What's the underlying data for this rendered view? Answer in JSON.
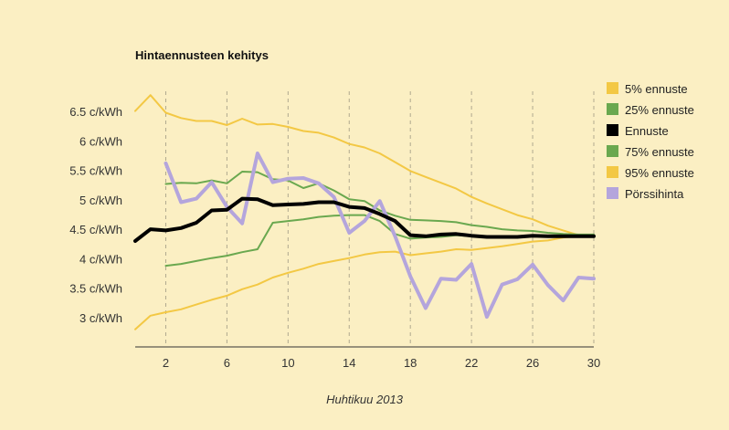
{
  "chart_data": {
    "type": "line",
    "title": "Hintaennusteen kehitys",
    "xlabel": "Huhtikuu 2013",
    "ylabel": "",
    "xlim": [
      0,
      30
    ],
    "ylim": [
      2.5,
      7.0
    ],
    "unit_suffix": " c/kWh",
    "grid": "vertical dashed",
    "legend_position": "right",
    "x_ticks": [
      "2",
      "6",
      "10",
      "14",
      "18",
      "22",
      "26",
      "30"
    ],
    "y_ticks": [
      "3",
      "3.5",
      "4",
      "4.5",
      "5",
      "5.5",
      "6",
      "6.5"
    ],
    "series": [
      {
        "name": "5% ennuste",
        "color": "#f3c844",
        "x": [
          0,
          1,
          2,
          3,
          4,
          5,
          6,
          7,
          8,
          9,
          10,
          11,
          12,
          13,
          14,
          15,
          16,
          17,
          18,
          19,
          20,
          21,
          22,
          23,
          24,
          25,
          26,
          27,
          28,
          29,
          30
        ],
        "values": [
          2.8,
          3.03,
          3.09,
          3.14,
          3.22,
          3.3,
          3.37,
          3.48,
          3.56,
          3.68,
          3.76,
          3.83,
          3.91,
          3.96,
          4.01,
          4.07,
          4.11,
          4.12,
          4.06,
          4.09,
          4.12,
          4.16,
          4.15,
          4.18,
          4.21,
          4.25,
          4.29,
          4.31,
          4.36,
          4.38,
          4.38
        ]
      },
      {
        "name": "25% ennuste",
        "color": "#6aa84f",
        "x": [
          2,
          3,
          4,
          5,
          6,
          7,
          8,
          9,
          10,
          11,
          12,
          13,
          14,
          15,
          16,
          17,
          18,
          19,
          20,
          21,
          22,
          23,
          24,
          25,
          26,
          27,
          28,
          29,
          30
        ],
        "values": [
          3.88,
          3.91,
          3.96,
          4.01,
          4.05,
          4.11,
          4.16,
          4.61,
          4.64,
          4.67,
          4.71,
          4.73,
          4.74,
          4.74,
          4.64,
          4.42,
          4.34,
          4.36,
          4.37,
          4.4,
          4.38,
          4.37,
          4.37,
          4.37,
          4.38,
          4.38,
          4.37,
          4.38,
          4.38
        ]
      },
      {
        "name": "Ennuste",
        "color": "#000000",
        "x": [
          0,
          1,
          2,
          3,
          4,
          5,
          6,
          7,
          8,
          9,
          10,
          11,
          12,
          13,
          14,
          15,
          16,
          17,
          18,
          19,
          20,
          21,
          22,
          23,
          24,
          25,
          26,
          27,
          28,
          29,
          30
        ],
        "values": [
          4.3,
          4.5,
          4.48,
          4.52,
          4.61,
          4.82,
          4.83,
          5.02,
          5.01,
          4.91,
          4.92,
          4.93,
          4.96,
          4.96,
          4.88,
          4.86,
          4.76,
          4.64,
          4.4,
          4.38,
          4.41,
          4.42,
          4.39,
          4.37,
          4.37,
          4.37,
          4.39,
          4.38,
          4.38,
          4.38,
          4.38
        ]
      },
      {
        "name": "75% ennuste",
        "color": "#6aa84f",
        "x": [
          2,
          3,
          4,
          5,
          6,
          7,
          8,
          9,
          10,
          11,
          12,
          13,
          14,
          15,
          16,
          17,
          18,
          19,
          20,
          21,
          22,
          23,
          24,
          25,
          26,
          27,
          28,
          29,
          30
        ],
        "values": [
          5.27,
          5.29,
          5.28,
          5.33,
          5.28,
          5.48,
          5.47,
          5.35,
          5.33,
          5.2,
          5.28,
          5.16,
          5.01,
          4.98,
          4.82,
          4.73,
          4.66,
          4.65,
          4.64,
          4.62,
          4.57,
          4.54,
          4.5,
          4.48,
          4.47,
          4.44,
          4.42,
          4.41,
          4.41
        ]
      },
      {
        "name": "95% ennuste",
        "color": "#f3c844",
        "x": [
          0,
          1,
          2,
          3,
          4,
          5,
          6,
          7,
          8,
          9,
          10,
          11,
          12,
          13,
          14,
          15,
          16,
          17,
          18,
          19,
          20,
          21,
          22,
          23,
          24,
          25,
          26,
          27,
          28,
          29,
          30
        ],
        "values": [
          6.51,
          6.78,
          6.48,
          6.39,
          6.34,
          6.34,
          6.27,
          6.38,
          6.28,
          6.29,
          6.24,
          6.17,
          6.14,
          6.06,
          5.95,
          5.89,
          5.79,
          5.64,
          5.49,
          5.39,
          5.29,
          5.19,
          5.05,
          4.94,
          4.84,
          4.74,
          4.67,
          4.56,
          4.48,
          4.4,
          4.4
        ]
      },
      {
        "name": "Pörssihinta",
        "color": "#b4a5dc",
        "x": [
          2,
          3,
          4,
          5,
          6,
          7,
          8,
          9,
          10,
          11,
          12,
          13,
          14,
          15,
          16,
          17,
          18,
          19,
          20,
          21,
          22,
          23,
          24,
          25,
          26,
          27,
          28,
          29,
          30
        ],
        "values": [
          5.62,
          4.96,
          5.02,
          5.3,
          4.88,
          4.6,
          5.79,
          5.3,
          5.36,
          5.37,
          5.28,
          5.05,
          4.44,
          4.64,
          4.98,
          4.38,
          3.7,
          3.16,
          3.66,
          3.64,
          3.91,
          3.01,
          3.56,
          3.65,
          3.9,
          3.55,
          3.29,
          3.68,
          3.66
        ]
      }
    ]
  }
}
